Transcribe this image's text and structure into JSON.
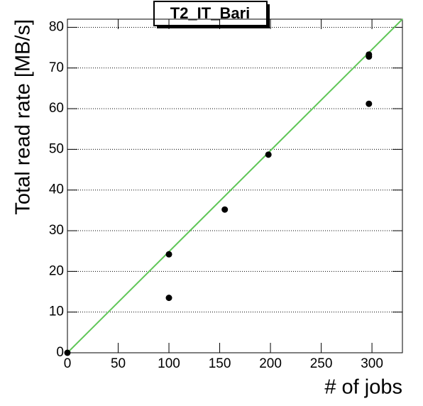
{
  "chart_data": {
    "type": "scatter",
    "title": "T2_IT_Bari",
    "x_label": "# of jobs",
    "y_label": "Total read rate [MB/s]",
    "x": [
      0,
      100,
      100,
      155,
      198,
      297,
      297,
      297
    ],
    "values": [
      0,
      24.2,
      13.5,
      35.2,
      48.7,
      73.3,
      72.8,
      61.2
    ],
    "color": "#000000",
    "fit_line": {
      "x": [
        0,
        330
      ],
      "values": [
        0,
        82
      ],
      "color": "#5fc657"
    },
    "xlim": [
      0,
      330
    ],
    "ylim": [
      0,
      82
    ],
    "xticks": [
      0,
      50,
      100,
      150,
      200,
      250,
      300
    ],
    "yticks": [
      0,
      10,
      20,
      30,
      40,
      50,
      60,
      70,
      80
    ],
    "grid": "y"
  }
}
